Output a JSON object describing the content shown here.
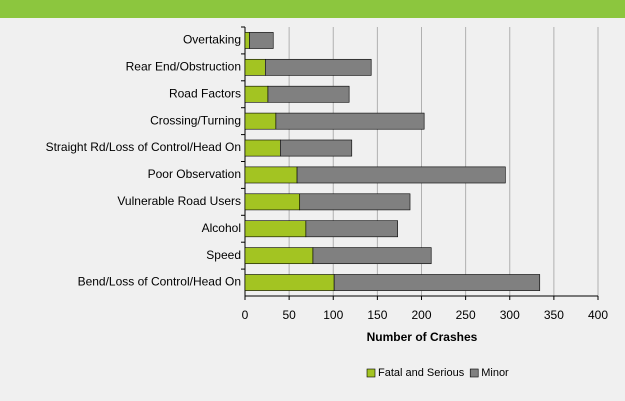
{
  "chart_data": {
    "type": "bar",
    "stacked": true,
    "orientation": "horizontal",
    "x_label": "Number of Crashes",
    "categories": [
      "Overtaking",
      "Rear End/Obstruction",
      "Road Factors",
      "Crossing/Turning",
      "Straight Rd/Loss of Control/Head On",
      "Poor Observation",
      "Vulnerable Road Users",
      "Alcohol",
      "Speed",
      "Bend/Loss of Control/Head On"
    ],
    "series": [
      {
        "name": "Fatal and Serious",
        "color": "#a3c422",
        "values": [
          5,
          23,
          26,
          35,
          40,
          59,
          62,
          69,
          77,
          101
        ]
      },
      {
        "name": "Minor",
        "color": "#808080",
        "values": [
          27,
          120,
          92,
          168,
          81,
          236,
          125,
          104,
          134,
          233
        ]
      }
    ],
    "xlim": [
      0,
      400
    ],
    "xticks": [
      0,
      50,
      100,
      150,
      200,
      250,
      300,
      350,
      400
    ],
    "grid": true
  }
}
